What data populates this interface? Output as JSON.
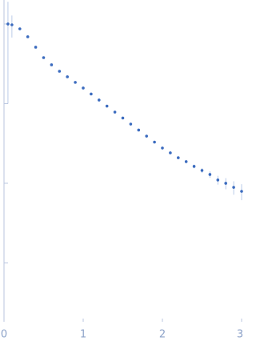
{
  "chart_data": {
    "type": "scatter",
    "color": "#3c6cbf",
    "error_color": "#a9bfe3",
    "log_y": true,
    "x": [
      0.05,
      0.1,
      0.2,
      0.3,
      0.4,
      0.5,
      0.6,
      0.7,
      0.8,
      0.9,
      1.0,
      1.1,
      1.2,
      1.3,
      1.4,
      1.5,
      1.6,
      1.7,
      1.8,
      1.9,
      2.0,
      2.1,
      2.2,
      2.3,
      2.4,
      2.5,
      2.6,
      2.7,
      2.8,
      2.9,
      3.0
    ],
    "values": [
      1.0,
      0.976,
      0.869,
      0.69,
      0.511,
      0.378,
      0.307,
      0.255,
      0.217,
      0.185,
      0.157,
      0.132,
      0.111,
      0.0931,
      0.0783,
      0.0659,
      0.0553,
      0.0466,
      0.0391,
      0.0329,
      0.0277,
      0.0241,
      0.0209,
      0.0187,
      0.0163,
      0.0145,
      0.0129,
      0.011,
      0.01,
      0.00889,
      0.00792
    ],
    "errors": [
      0.9,
      0.3,
      0.02,
      0.01,
      0.006,
      0.004,
      0.003,
      0.002,
      0.002,
      0.002,
      0.002,
      0.002,
      0.0015,
      0.0012,
      0.001,
      0.001,
      0.001,
      0.0009,
      0.0008,
      0.0008,
      0.0008,
      0.0008,
      0.0008,
      0.0008,
      0.0009,
      0.001,
      0.0012,
      0.0014,
      0.0016,
      0.0017,
      0.0018
    ],
    "xlim": [
      0,
      3
    ],
    "xticks": [
      0,
      1,
      2,
      3
    ],
    "ylim": [
      0.0002,
      2
    ],
    "yticks": [
      0.001,
      0.01,
      0.1,
      1
    ]
  }
}
